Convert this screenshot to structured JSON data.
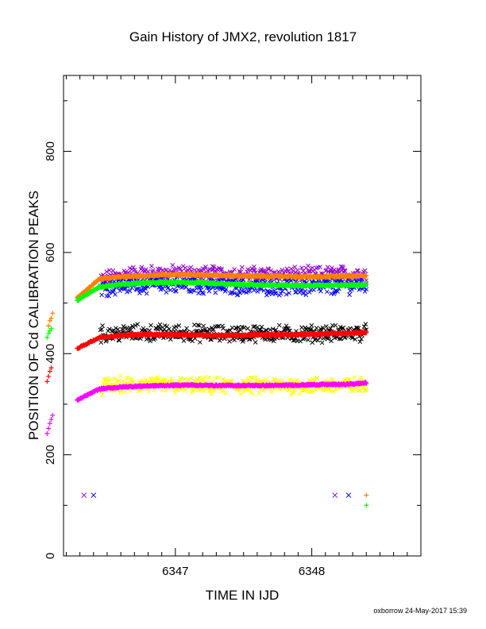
{
  "chart_data": {
    "type": "scatter",
    "title": "Gain History of JMX2, revolution 1817",
    "xlabel": "TIME IN IJD",
    "ylabel": "POSITION OF Cd CALIBRATION PEAKS",
    "xlim": [
      6346.18,
      6348.8
    ],
    "ylim": [
      0,
      950
    ],
    "x_ticks": [
      6347,
      6348
    ],
    "y_ticks": [
      0,
      200,
      400,
      600,
      800
    ],
    "grid": false,
    "legend": "none",
    "series": [
      {
        "marker": "x",
        "color": "#9400d3",
        "mode": "noisy",
        "x_start": 6346.45,
        "x_end": 6348.4,
        "values": [
          545,
          555,
          558,
          558,
          559,
          557,
          556,
          556,
          555,
          556,
          555,
          556,
          557,
          557
        ]
      },
      {
        "marker": "x",
        "color": "#0000ff",
        "mode": "noisy",
        "x_start": 6346.45,
        "x_end": 6348.4,
        "values": [
          530,
          535,
          537,
          537,
          536,
          534,
          533,
          532,
          533,
          532,
          531,
          532,
          535,
          536
        ]
      },
      {
        "marker": "x",
        "color": "#000000",
        "mode": "noisy",
        "x_start": 6346.45,
        "x_end": 6348.4,
        "values": [
          438,
          440,
          441,
          441,
          441,
          440,
          439,
          440,
          440,
          439,
          439,
          440,
          440,
          441
        ]
      },
      {
        "marker": "x",
        "color": "#ffff00",
        "mode": "noisy",
        "x_start": 6346.45,
        "x_end": 6348.4,
        "values": [
          335,
          338,
          338,
          337,
          337,
          336,
          336,
          336,
          336,
          337,
          337,
          337,
          337,
          337
        ]
      },
      {
        "marker": "+",
        "color": "#ff7f00",
        "mode": "smooth",
        "x_start": 6346.28,
        "x_end": 6348.4,
        "values": [
          510,
          548,
          552,
          554,
          556,
          556,
          555,
          554,
          553,
          553,
          552,
          552,
          553,
          554
        ]
      },
      {
        "marker": "+",
        "color": "#00ff00",
        "mode": "smooth",
        "x_start": 6346.28,
        "x_end": 6348.4,
        "values": [
          505,
          532,
          537,
          540,
          541,
          541,
          539,
          537,
          536,
          535,
          535,
          535,
          535,
          536
        ]
      },
      {
        "marker": "+",
        "color": "#ff0000",
        "mode": "smooth",
        "x_start": 6346.28,
        "x_end": 6348.4,
        "values": [
          410,
          432,
          436,
          438,
          438,
          437,
          436,
          436,
          437,
          437,
          438,
          439,
          440,
          442
        ]
      },
      {
        "marker": "+",
        "color": "#ff00ff",
        "mode": "smooth",
        "x_start": 6346.28,
        "x_end": 6348.4,
        "values": [
          308,
          330,
          334,
          336,
          337,
          338,
          337,
          337,
          337,
          337,
          338,
          339,
          339,
          342
        ]
      },
      {
        "marker": "+",
        "color": "#ff7f00",
        "mode": "points",
        "x": [
          6346.07,
          6346.08,
          6346.09,
          6346.1,
          6348.4
        ],
        "y": [
          455,
          465,
          470,
          480,
          120
        ]
      },
      {
        "marker": "+",
        "color": "#00ff00",
        "mode": "points",
        "x": [
          6346.06,
          6346.07,
          6346.08,
          6346.09,
          6348.4
        ],
        "y": [
          432,
          440,
          445,
          450,
          100
        ]
      },
      {
        "marker": "+",
        "color": "#ff0000",
        "mode": "points",
        "x": [
          6346.06,
          6346.07,
          6346.08,
          6346.09
        ],
        "y": [
          345,
          355,
          365,
          372
        ]
      },
      {
        "marker": "+",
        "color": "#ff00ff",
        "mode": "points",
        "x": [
          6346.06,
          6346.07,
          6346.08,
          6346.09,
          6346.1
        ],
        "y": [
          242,
          252,
          262,
          270,
          278
        ]
      },
      {
        "marker": "x",
        "color": "#9400d3",
        "mode": "points",
        "x": [
          6346.33,
          6348.17
        ],
        "y": [
          120,
          120
        ]
      },
      {
        "marker": "x",
        "color": "#0000ff",
        "mode": "points",
        "x": [
          6346.4,
          6348.27
        ],
        "y": [
          120,
          120
        ]
      }
    ]
  },
  "footer": "oxborrow 24-May-2017 15:39"
}
